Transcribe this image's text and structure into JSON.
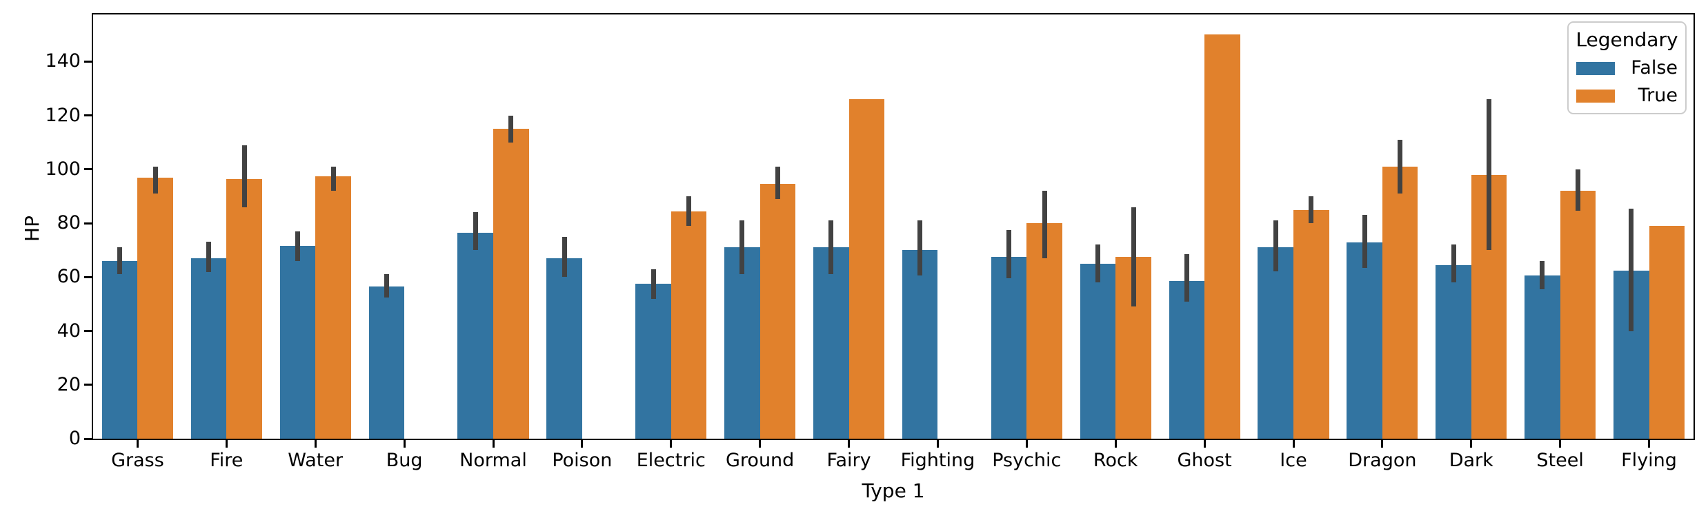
{
  "chart_data": {
    "type": "bar",
    "title": "",
    "xlabel": "Type 1",
    "ylabel": "HP",
    "categories": [
      "Grass",
      "Fire",
      "Water",
      "Bug",
      "Normal",
      "Poison",
      "Electric",
      "Ground",
      "Fairy",
      "Fighting",
      "Psychic",
      "Rock",
      "Ghost",
      "Ice",
      "Dragon",
      "Dark",
      "Steel",
      "Flying"
    ],
    "series": [
      {
        "name": "False",
        "color": "#3274A1",
        "values": [
          66,
          67,
          71.5,
          56.5,
          76.5,
          67,
          57.5,
          71,
          71,
          70,
          67.5,
          65,
          58.5,
          71,
          73,
          64.5,
          60.5,
          62.5
        ],
        "ci": [
          [
            61,
            71
          ],
          [
            62,
            73
          ],
          [
            66,
            77
          ],
          [
            52.5,
            61
          ],
          [
            70,
            84
          ],
          [
            60,
            75
          ],
          [
            52,
            63
          ],
          [
            61,
            81
          ],
          [
            61,
            81
          ],
          [
            60.5,
            81
          ],
          [
            59.5,
            77.5
          ],
          [
            58,
            72
          ],
          [
            51,
            68.5
          ],
          [
            62,
            81
          ],
          [
            63.5,
            83
          ],
          [
            58,
            72
          ],
          [
            55.5,
            66
          ],
          [
            40,
            85.5
          ]
        ]
      },
      {
        "name": "True",
        "color": "#E1812C",
        "values": [
          97,
          96.5,
          97.5,
          null,
          115,
          null,
          84.5,
          94.5,
          126,
          null,
          80,
          67.5,
          150,
          85,
          101,
          98,
          92,
          79
        ],
        "ci": [
          [
            91,
            101
          ],
          [
            86,
            109
          ],
          [
            92,
            101
          ],
          null,
          [
            110,
            120
          ],
          null,
          [
            79,
            90
          ],
          [
            89,
            101
          ],
          null,
          null,
          [
            67,
            92
          ],
          [
            49,
            86
          ],
          null,
          [
            80,
            90
          ],
          [
            91,
            111
          ],
          [
            70,
            126
          ],
          [
            84.5,
            100
          ],
          null
        ]
      }
    ],
    "legend": {
      "title": "Legendary",
      "position": "upper right",
      "entries": [
        "False",
        "True"
      ]
    },
    "ylim": [
      0,
      157.5
    ],
    "yticks": [
      0,
      20,
      40,
      60,
      80,
      100,
      120,
      140
    ],
    "grid": false,
    "error_bar_color": "#424242",
    "bar_group_width": 0.8
  }
}
